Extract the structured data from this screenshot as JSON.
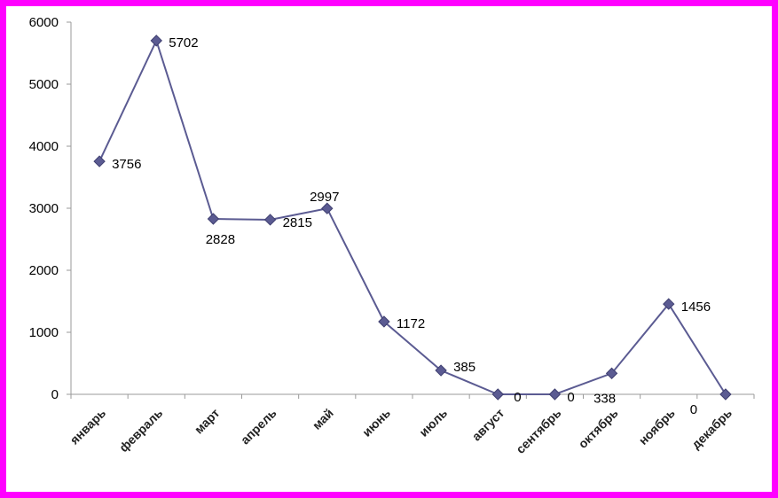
{
  "chart_data": {
    "type": "line",
    "title": "",
    "xlabel": "",
    "ylabel": "",
    "ylim": [
      0,
      6000
    ],
    "yticks": [
      0,
      1000,
      2000,
      3000,
      4000,
      5000,
      6000
    ],
    "categories": [
      "январь",
      "февраль",
      "март",
      "апрель",
      "май",
      "июнь",
      "июль",
      "август",
      "сентябрь",
      "октябрь",
      "ноябрь",
      "декабрь"
    ],
    "series": [
      {
        "values": [
          3756,
          5702,
          2828,
          2815,
          2997,
          1172,
          385,
          0,
          0,
          338,
          1456,
          0
        ],
        "color": "#5b5b92",
        "marker": "diamond"
      }
    ],
    "data_labels": [
      "3756",
      "5702",
      "2828",
      "2815",
      "2997",
      "1172",
      "385",
      "0",
      "0",
      "338",
      "1456",
      "0"
    ],
    "grid": false,
    "legend": "none"
  },
  "colors": {
    "frame": "#ff00ff",
    "line": "#5b5b92",
    "marker": "#5b5b92"
  }
}
